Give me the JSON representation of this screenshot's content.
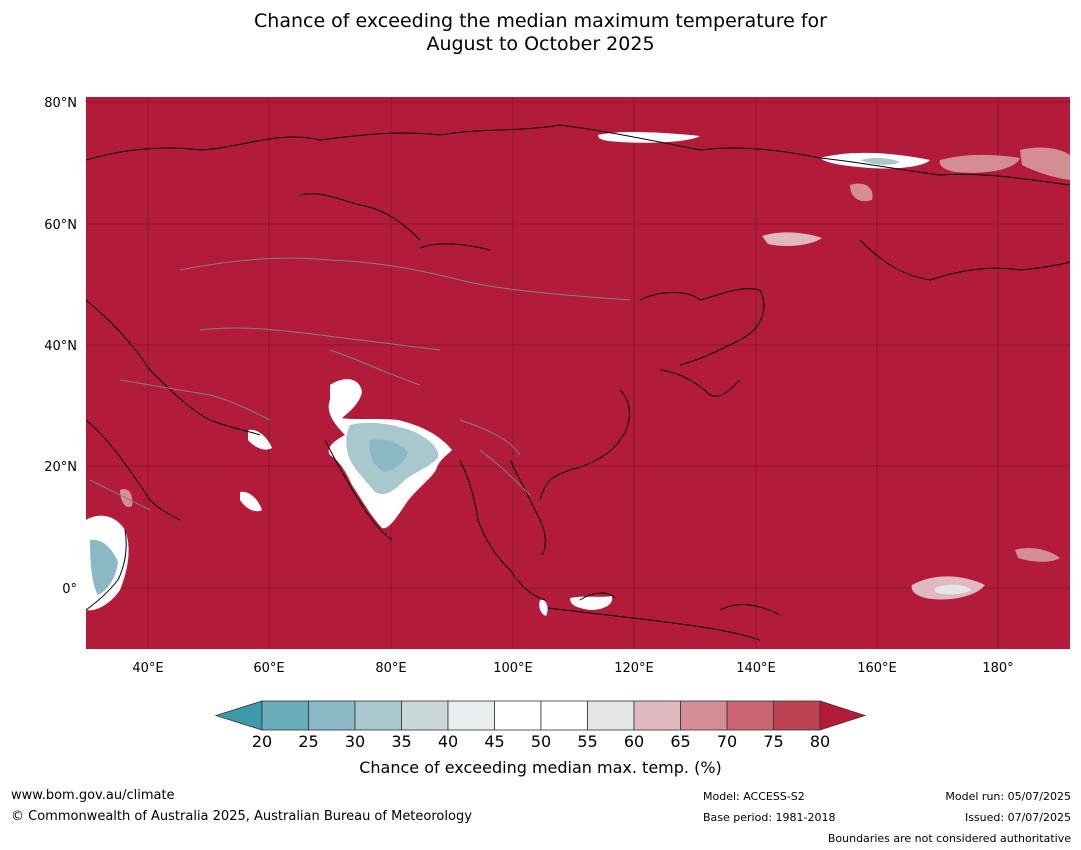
{
  "title": {
    "line1": "Chance of exceeding the median maximum temperature for",
    "line2": "August to October 2025"
  },
  "map": {
    "lat_labels": [
      "80°N",
      "60°N",
      "40°N",
      "20°N",
      "0°"
    ],
    "lon_labels": [
      "40°E",
      "60°E",
      "80°E",
      "100°E",
      "120°E",
      "140°E",
      "160°E",
      "180°"
    ],
    "colors": {
      "background": "#b31b3b",
      "land_outline": "#000000",
      "borders": "#808080",
      "grid": "#7a1a2a"
    }
  },
  "colorbar": {
    "ticks": [
      "20",
      "25",
      "30",
      "35",
      "40",
      "45",
      "50",
      "55",
      "60",
      "65",
      "70",
      "75",
      "80"
    ],
    "label": "Chance of exceeding median max. temp. (%)",
    "colors": [
      "#3d9aaa",
      "#6aaebb",
      "#8ab8c4",
      "#a9c8ce",
      "#cad8da",
      "#e8eef0",
      "#ffffff",
      "#ffffff",
      "#e6e6e6",
      "#dfb9bf",
      "#d48c95",
      "#c86570",
      "#bd4352",
      "#b31b3b"
    ]
  },
  "footer": {
    "website": "www.bom.gov.au/climate",
    "copyright": "© Commonwealth of Australia 2025, Australian Bureau of Meteorology",
    "model": "Model: ACCESS-S2",
    "base_period": "Base period: 1981-2018",
    "model_run": "Model run: 05/07/2025",
    "issued": "Issued: 07/07/2025",
    "boundaries": "Boundaries are not considered authoritative"
  }
}
